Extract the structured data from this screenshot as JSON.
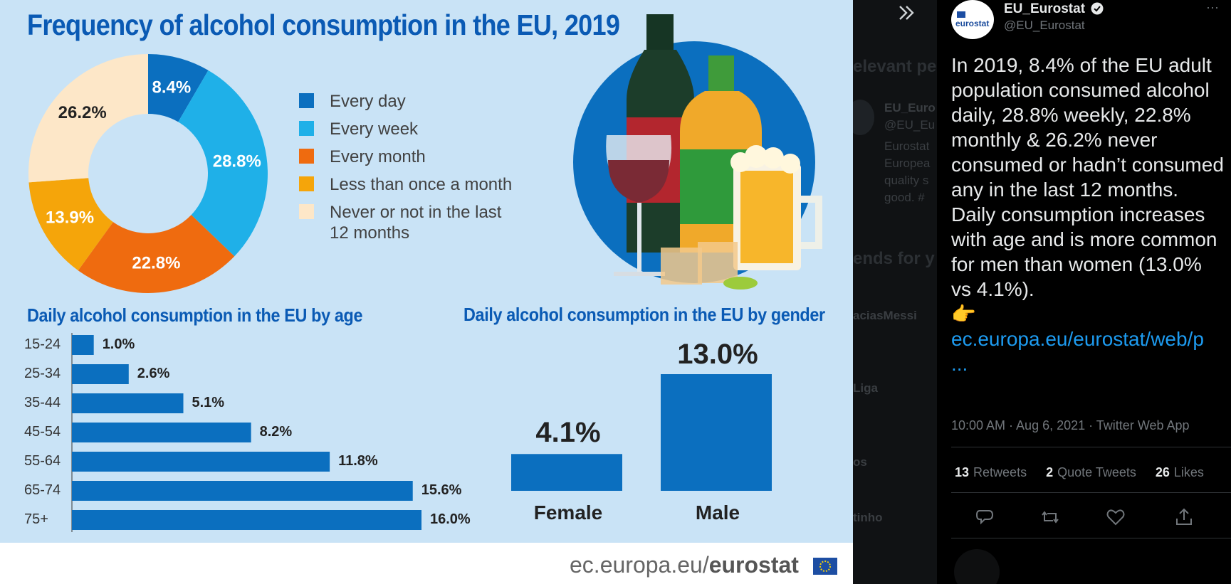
{
  "infographic": {
    "title": "Frequency of alcohol consumption in the EU, 2019",
    "donut": {
      "slices": [
        {
          "label": "Every day",
          "value": 8.4,
          "value_label": "8.4%",
          "color": "#0b6fbf"
        },
        {
          "label": "Every week",
          "value": 28.8,
          "value_label": "28.8%",
          "color": "#1fb0e8"
        },
        {
          "label": "Every month",
          "value": 22.8,
          "value_label": "22.8%",
          "color": "#ef6b0f"
        },
        {
          "label": "Less than once a month",
          "value": 13.9,
          "value_label": "13.9%",
          "color": "#f5a50a"
        },
        {
          "label": "Never or not in the last 12 months",
          "value": 26.2,
          "value_label": "26.2%",
          "color": "#fde7c8"
        }
      ],
      "legend": [
        "Every day",
        "Every week",
        "Every month",
        "Less than once a month",
        "Never or not in the last\n12 months"
      ]
    },
    "age_chart": {
      "title": "Daily alcohol consumption in the EU by age",
      "rows": [
        {
          "age": "15-24",
          "value": 1.0,
          "label": "1.0%"
        },
        {
          "age": "25-34",
          "value": 2.6,
          "label": "2.6%"
        },
        {
          "age": "35-44",
          "value": 5.1,
          "label": "5.1%"
        },
        {
          "age": "45-54",
          "value": 8.2,
          "label": "8.2%"
        },
        {
          "age": "55-64",
          "value": 11.8,
          "label": "11.8%"
        },
        {
          "age": "65-74",
          "value": 15.6,
          "label": "15.6%"
        },
        {
          "age": "75+",
          "value": 16.0,
          "label": "16.0%"
        }
      ]
    },
    "gender_chart": {
      "title": "Daily alcohol consumption in the EU by gender",
      "female_label": "Female",
      "female_value": "4.1%",
      "male_label": "Male",
      "male_value": "13.0%"
    },
    "footer": {
      "domain": "ec.europa.eu/",
      "brand": "eurostat"
    },
    "colors": {
      "accent": "#0a5ab4",
      "bar": "#0b6fbf",
      "background": "#c9e3f6"
    }
  },
  "chart_data": [
    {
      "type": "pie",
      "title": "Frequency of alcohol consumption in the EU, 2019",
      "categories": [
        "Every day",
        "Every week",
        "Every month",
        "Less than once a month",
        "Never or not in the last 12 months"
      ],
      "values": [
        8.4,
        28.8,
        22.8,
        13.9,
        26.2
      ],
      "legend": "right"
    },
    {
      "type": "bar",
      "title": "Daily alcohol consumption in the EU by age",
      "categories": [
        "15-24",
        "25-34",
        "35-44",
        "45-54",
        "55-64",
        "65-74",
        "75+"
      ],
      "values": [
        1.0,
        2.6,
        5.1,
        8.2,
        11.8,
        15.6,
        16.0
      ]
    },
    {
      "type": "bar",
      "title": "Daily alcohol consumption in the EU by gender",
      "categories": [
        "Female",
        "Male"
      ],
      "values": [
        4.1,
        13.0
      ]
    }
  ],
  "background_column": {
    "texts": [
      "elevant pe",
      "EU_Euro",
      "@EU_Eu",
      "Eurostat",
      "Europea",
      "quality s",
      "good. #",
      "ends for y",
      "aciasMessi",
      "Liga",
      "os",
      "tinho"
    ]
  },
  "tweet": {
    "author_name": "EU_Eurostat",
    "author_handle": "@EU_Eurostat",
    "avatar_text": "eurostat",
    "more": "···",
    "body": "In 2019, 8.4% of the EU adult population consumed alcohol daily, 28.8% weekly, 22.8% monthly & 26.2% never consumed or hadn’t consumed any in the last 12 months.\nDaily consumption increases with age and is more common for men than women (13.0% vs 4.1%).",
    "emoji": "👉",
    "link": "ec.europa.eu/eurostat/web/p\n...",
    "meta": "10:00 AM · Aug 6, 2021 · Twitter Web App",
    "stats": {
      "retweets_count": "13",
      "retweets_label": "Retweets",
      "quotes_count": "2",
      "quotes_label": "Quote Tweets",
      "likes_count": "26",
      "likes_label": "Likes"
    }
  }
}
